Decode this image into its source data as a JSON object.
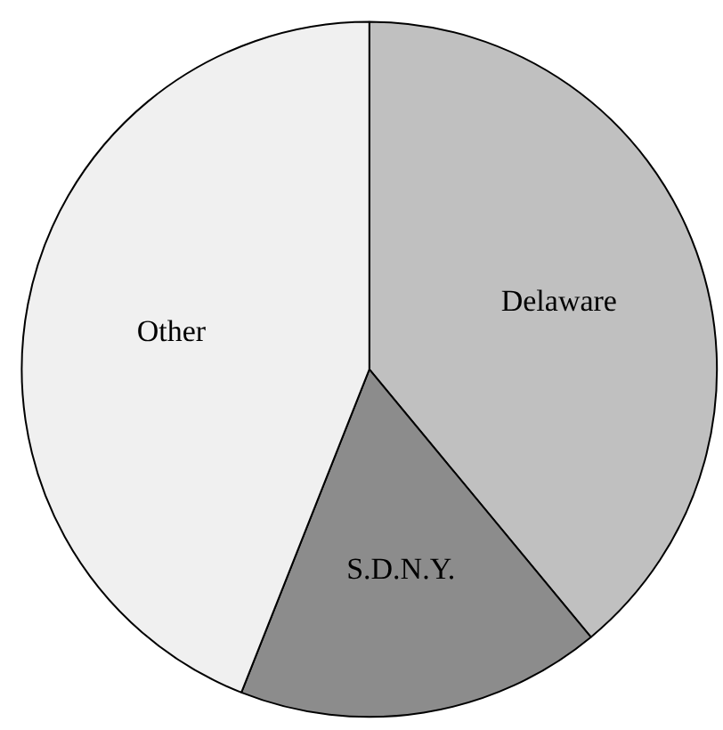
{
  "chart_data": {
    "type": "pie",
    "categories": [
      "Delaware",
      "S.D.N.Y.",
      "Other"
    ],
    "values": [
      39,
      17,
      44
    ],
    "colors": [
      "#c0c0c0",
      "#8c8c8c",
      "#f0f0f0"
    ]
  }
}
